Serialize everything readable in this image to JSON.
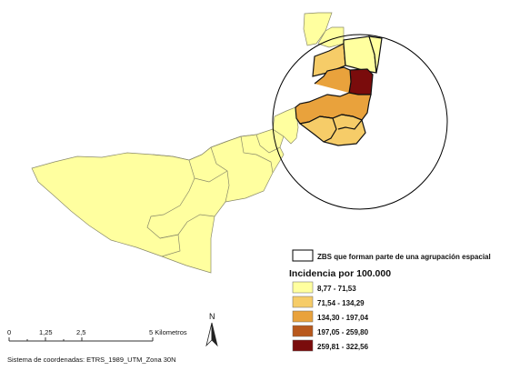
{
  "map": {
    "cluster_legend_label": "ZBS que forman parte de una agrupación espacial",
    "legend_title": "Incidencia por 100.000",
    "classes": [
      {
        "label": "8,77 - 71,53",
        "color": "#ffff9f"
      },
      {
        "label": "71,54 - 134,29",
        "color": "#f6cc68"
      },
      {
        "label": "134,30 - 197,04",
        "color": "#e9a23c"
      },
      {
        "label": "197,05 - 259,80",
        "color": "#b8581c"
      },
      {
        "label": "259,81 - 322,56",
        "color": "#7a0c0c"
      }
    ],
    "scale_bar": {
      "ticks": [
        "0",
        "1,25",
        "2,5",
        "5 Kilometros"
      ]
    },
    "north_label": "N",
    "crs_note": "Sistema de coordenadas: ETRS_1989_UTM_Zona 30N",
    "cluster_outline_color": "#000000"
  }
}
